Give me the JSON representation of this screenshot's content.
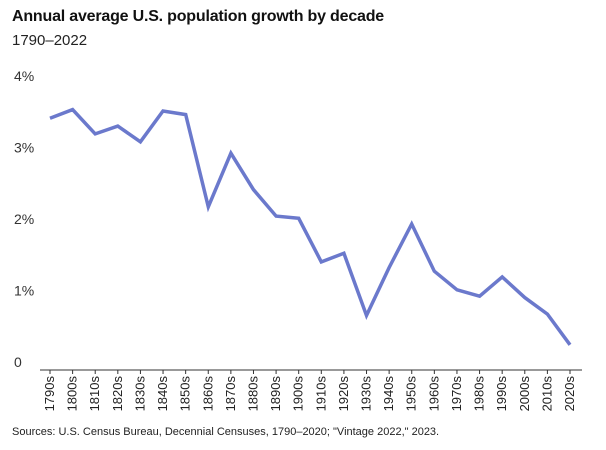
{
  "chart_data": {
    "type": "line",
    "title": "Annual average U.S. population growth by decade",
    "subtitle": "1790–2022",
    "xlabel": "",
    "ylabel": "",
    "ylim": [
      0,
      4
    ],
    "yticks": [
      0,
      1,
      2,
      3,
      4
    ],
    "ytick_labels": [
      "0",
      "1%",
      "2%",
      "3%",
      "4%"
    ],
    "grid": false,
    "legend": "none",
    "line_color": "#6b79cc",
    "categories": [
      "1790s",
      "1800s",
      "1810s",
      "1820s",
      "1830s",
      "1840s",
      "1850s",
      "1860s",
      "1870s",
      "1880s",
      "1890s",
      "1900s",
      "1910s",
      "1920s",
      "1930s",
      "1940s",
      "1950s",
      "1960s",
      "1970s",
      "1980s",
      "1990s",
      "2000s",
      "2010s",
      "2020s"
    ],
    "series": [
      {
        "values": [
          3.41,
          3.53,
          3.19,
          3.3,
          3.08,
          3.51,
          3.46,
          2.17,
          2.92,
          2.41,
          2.04,
          2.01,
          1.4,
          1.52,
          0.65,
          1.32,
          1.93,
          1.27,
          1.01,
          0.92,
          1.19,
          0.9,
          0.67,
          0.24
        ]
      }
    ],
    "source": "Sources: U.S. Census Bureau, Decennial Censuses, 1790–2020; \"Vintage 2022,\" 2023."
  }
}
